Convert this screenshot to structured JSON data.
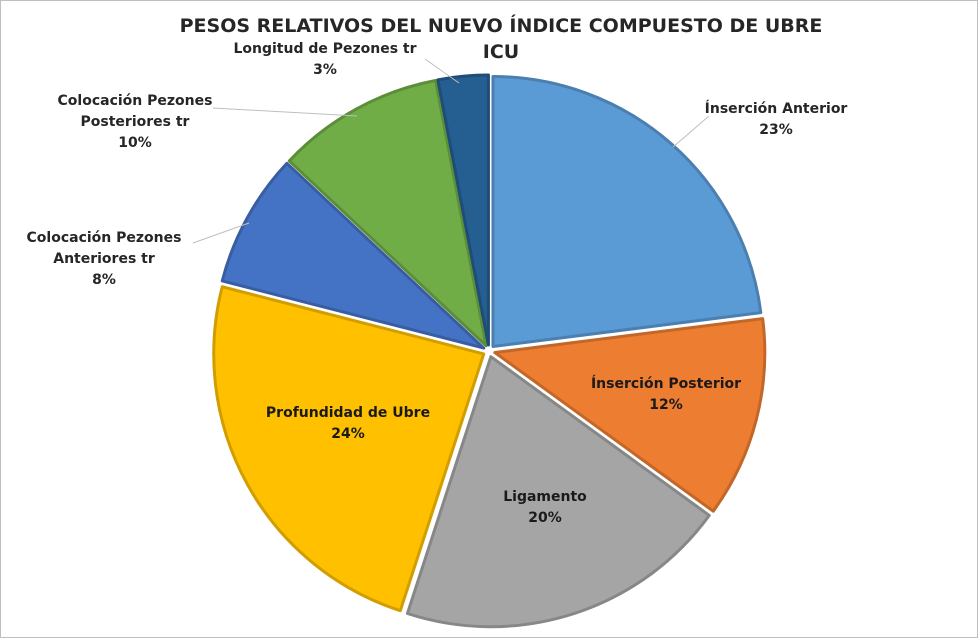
{
  "chart_data": {
    "type": "pie",
    "title_line1": "PESOS RELATIVOS DEL NUEVO ÍNDICE COMPUESTO DE UBRE",
    "title_line2": "ICU",
    "slices": [
      {
        "name": "Ínserción Anterior",
        "value": 23,
        "pct": "23%",
        "color": "#5b9bd5"
      },
      {
        "name": "Ínserción Posterior",
        "value": 12,
        "pct": "12%",
        "color": "#ed7d31"
      },
      {
        "name": "Ligamento",
        "value": 20,
        "pct": "20%",
        "color": "#a5a5a5"
      },
      {
        "name": "Profundidad de Ubre",
        "value": 24,
        "pct": "24%",
        "color": "#ffc000"
      },
      {
        "name": "Colocación Pezones Anteriores tr",
        "value": 8,
        "pct": "8%",
        "color": "#4472c4"
      },
      {
        "name": "Colocación Pezones Posteriores tr",
        "value": 10,
        "pct": "10%",
        "color": "#70ad47"
      },
      {
        "name": "Longitud de Pezones tr",
        "value": 3,
        "pct": "3%",
        "color": "#255e91"
      }
    ],
    "label_lines": [
      [
        "Ínserción Anterior",
        "23%"
      ],
      [
        "Ínserción Posterior",
        "12%"
      ],
      [
        "Ligamento",
        "20%"
      ],
      [
        "Profundidad de Ubre",
        "24%"
      ],
      [
        "Colocación Pezones",
        "Anteriores tr",
        "8%"
      ],
      [
        "Colocación Pezones",
        "Posteriores tr",
        "10%"
      ],
      [
        "Longitud de Pezones tr",
        "3%"
      ]
    ],
    "start_angle": "12 o'clock, clockwise",
    "legend": "none (data labels)"
  }
}
